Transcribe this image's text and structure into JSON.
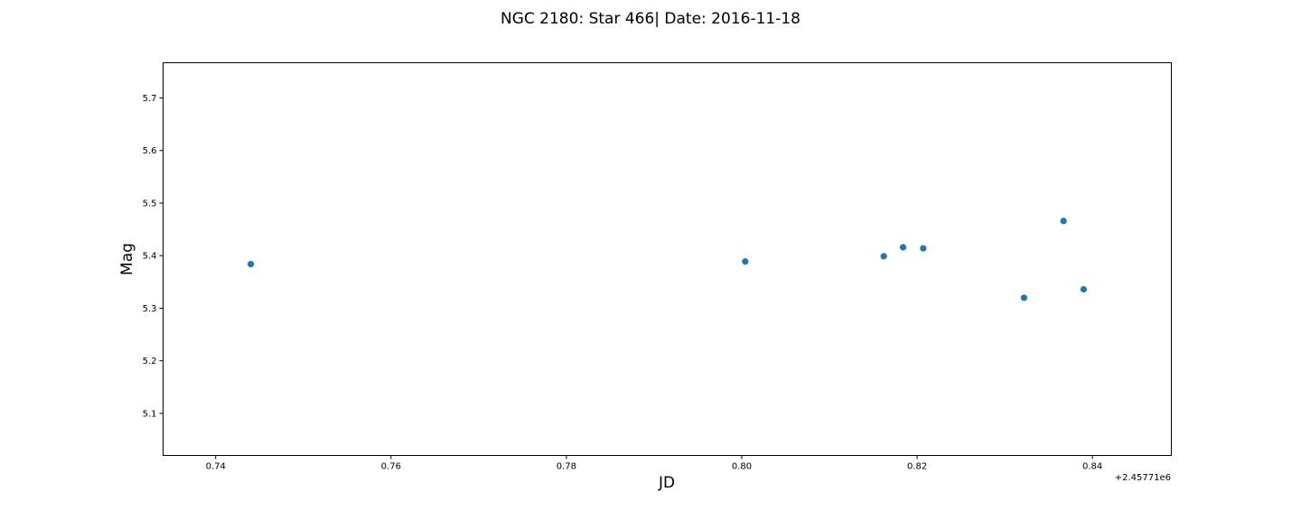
{
  "chart_data": {
    "type": "scatter",
    "title": "NGC 2180: Star 466| Date: 2016-11-18",
    "xlabel": "JD",
    "ylabel": "Mag",
    "x_offset_label": "+2.45771e6",
    "xlim": [
      0.734,
      0.849
    ],
    "ylim": [
      5.02,
      5.767
    ],
    "x_ticks": [
      0.74,
      0.76,
      0.78,
      0.8,
      0.82,
      0.84
    ],
    "x_tick_labels": [
      "0.74",
      "0.76",
      "0.78",
      "0.80",
      "0.82",
      "0.84"
    ],
    "y_ticks": [
      5.1,
      5.2,
      5.3,
      5.4,
      5.5,
      5.6,
      5.7
    ],
    "y_tick_labels": [
      "5.1",
      "5.2",
      "5.3",
      "5.4",
      "5.5",
      "5.6",
      "5.7"
    ],
    "grid": false,
    "marker_color": "#1f77b4",
    "x": [
      0.744,
      0.8004,
      0.8162,
      0.8184,
      0.8207,
      0.8322,
      0.8367,
      0.839
    ],
    "y": [
      5.384,
      5.389,
      5.399,
      5.416,
      5.414,
      5.32,
      5.466,
      5.336
    ]
  }
}
